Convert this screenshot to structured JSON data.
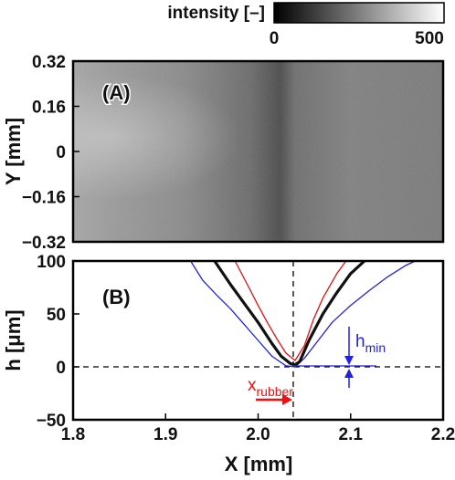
{
  "chart_data": [
    {
      "type": "heatmap",
      "panel_label": "(A)",
      "ylabel": "Y [mm]",
      "y_ticks": [
        "0.32",
        "0.16",
        "0",
        "−0.16",
        "−0.32"
      ],
      "ylim": [
        -0.32,
        0.32
      ],
      "xlim": [
        1.8,
        2.2
      ],
      "colorbar": {
        "label": "intensity [–]",
        "min_label": "0",
        "max_label": "500",
        "range": [
          0,
          500
        ]
      }
    },
    {
      "type": "line",
      "panel_label": "(B)",
      "xlabel": "X [mm]",
      "ylabel": "h [μm]",
      "xlim": [
        1.8,
        2.2
      ],
      "ylim": [
        -50,
        100
      ],
      "x_ticks": [
        "1.8",
        "1.9",
        "2.0",
        "2.1",
        "2.2"
      ],
      "y_ticks": [
        "100",
        "50",
        "0",
        "−50"
      ],
      "series": [
        {
          "color": "#2222dd",
          "x": [
            1.927,
            1.94,
            1.955,
            1.97,
            1.985,
            2.0,
            2.015,
            2.03,
            2.04,
            2.05,
            2.065,
            2.08,
            2.1,
            2.12,
            2.14,
            2.16,
            2.17
          ],
          "y": [
            100,
            82,
            68,
            55,
            40,
            25,
            10,
            1,
            0,
            8,
            25,
            42,
            58,
            72,
            85,
            96,
            100
          ]
        },
        {
          "color": "#111111",
          "x": [
            1.953,
            1.97,
            1.985,
            2.0,
            2.015,
            2.025,
            2.035,
            2.04,
            2.045,
            2.055,
            2.07,
            2.085,
            2.1,
            2.115
          ],
          "y": [
            100,
            78,
            60,
            42,
            22,
            10,
            3,
            2,
            5,
            25,
            50,
            70,
            88,
            100
          ]
        },
        {
          "color": "#dd1111",
          "x": [
            1.975,
            1.99,
            2.0,
            2.01,
            2.02,
            2.03,
            2.04,
            2.05,
            2.06,
            2.07,
            2.085,
            2.095
          ],
          "y": [
            100,
            75,
            58,
            42,
            27,
            13,
            6,
            20,
            45,
            65,
            88,
            100
          ]
        }
      ],
      "annotations": {
        "x_rubber_main": "x",
        "x_rubber_sub": "rubber",
        "h_min_main": "h",
        "h_min_sub": "min",
        "x_rubber_position": 2.038,
        "h_min_level": 0,
        "h_min_color": "#2222dd",
        "x_rubber_color": "#ee1111"
      }
    }
  ]
}
